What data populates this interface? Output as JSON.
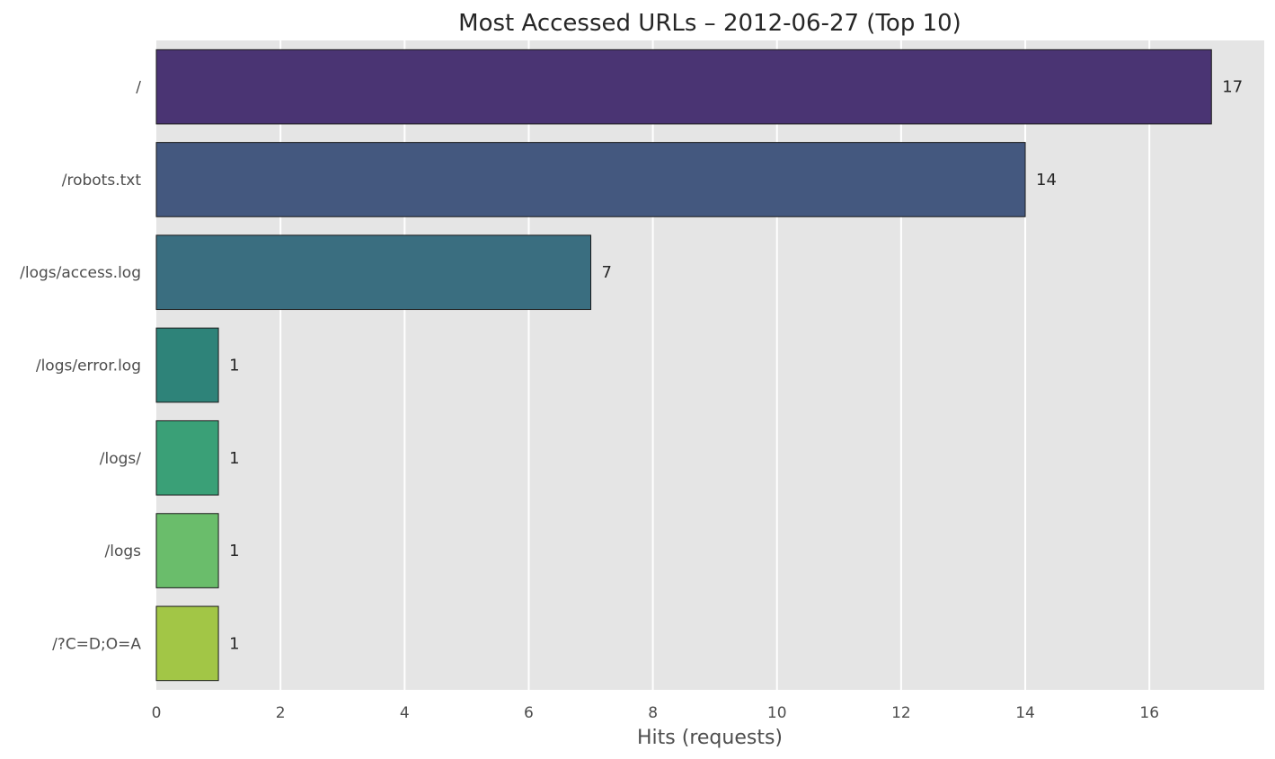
{
  "chart_data": {
    "type": "bar",
    "orientation": "horizontal",
    "title": "Most Accessed URLs – 2012-06-27 (Top 10)",
    "xlabel": "Hits (requests)",
    "ylabel": "",
    "categories": [
      "/",
      "/robots.txt",
      "/logs/access.log",
      "/logs/error.log",
      "/logs/",
      "/logs",
      "/?C=D;O=A"
    ],
    "values": [
      17,
      14,
      7,
      1,
      1,
      1,
      1
    ],
    "data_labels": [
      "17",
      "14",
      "7",
      "1",
      "1",
      "1",
      "1"
    ],
    "colors": [
      "#4a3473",
      "#44587f",
      "#3a6e80",
      "#2e8379",
      "#3aa077",
      "#6abd6b",
      "#a2c646"
    ],
    "xlim": [
      0,
      17.85
    ],
    "xticks": [
      0,
      2,
      4,
      6,
      8,
      10,
      12,
      14,
      16
    ],
    "grid": true,
    "background": "#e5e5e5",
    "legend": "none"
  }
}
